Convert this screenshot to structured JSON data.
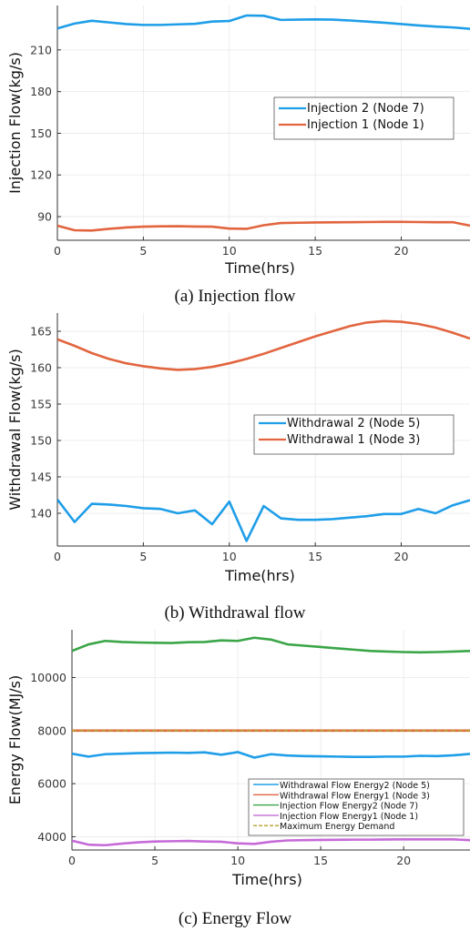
{
  "chart_data": [
    {
      "type": "line",
      "xlabel": "Time(hrs)",
      "ylabel": "Injection Flow(kg/s)",
      "caption": "(a) Injection flow",
      "xlim": [
        0,
        24
      ],
      "ylim": [
        73,
        242
      ],
      "xticks": [
        0,
        5,
        10,
        15,
        20
      ],
      "yticks": [
        90,
        120,
        150,
        180,
        210
      ],
      "grid": true,
      "legend_position": "right",
      "series": [
        {
          "name": "Injection 2 (Node 7)",
          "color": "#1f9ee8",
          "x": [
            0,
            1,
            2,
            3,
            4,
            5,
            6,
            7,
            8,
            9,
            10,
            11,
            12,
            13,
            14,
            15,
            16,
            17,
            18,
            19,
            20,
            21,
            22,
            23,
            24
          ],
          "y": [
            225.5,
            229,
            231,
            229.8,
            228.6,
            228,
            228,
            228.4,
            228.8,
            230.4,
            230.8,
            234.8,
            234.6,
            231.6,
            231.8,
            232,
            231.8,
            231.2,
            230.4,
            229.6,
            228.6,
            227.6,
            226.8,
            226.2,
            225.2
          ]
        },
        {
          "name": "Injection 1 (Node 1)",
          "color": "#e2653f",
          "x": [
            0,
            1,
            2,
            3,
            4,
            5,
            6,
            7,
            8,
            9,
            10,
            11,
            12,
            13,
            14,
            15,
            16,
            17,
            18,
            19,
            20,
            21,
            22,
            23,
            24
          ],
          "y": [
            83.5,
            80.2,
            80,
            81.2,
            82.2,
            82.8,
            83,
            83.1,
            82.9,
            82.8,
            81.4,
            81.2,
            83.8,
            85.4,
            85.6,
            85.8,
            85.9,
            86,
            86.1,
            86.2,
            86.2,
            86.1,
            86,
            86,
            83.5
          ]
        }
      ]
    },
    {
      "type": "line",
      "xlabel": "Time(hrs)",
      "ylabel": "Withdrawal Flow(kg/s)",
      "caption": "(b) Withdrawal flow",
      "xlim": [
        0,
        24
      ],
      "ylim": [
        135.5,
        167.5
      ],
      "xticks": [
        0,
        5,
        10,
        15,
        20
      ],
      "yticks": [
        140,
        145,
        150,
        155,
        160,
        165
      ],
      "grid": true,
      "legend_position": "right",
      "series": [
        {
          "name": "Withdrawal 2 (Node 5)",
          "color": "#1f9ee8",
          "x": [
            0,
            1,
            2,
            3,
            4,
            5,
            6,
            7,
            8,
            9,
            10,
            11,
            12,
            13,
            14,
            15,
            16,
            17,
            18,
            19,
            20,
            21,
            22,
            23,
            24
          ],
          "y": [
            141.9,
            138.8,
            141.3,
            141.2,
            141,
            140.7,
            140.6,
            140,
            140.4,
            138.5,
            141.6,
            136.2,
            141,
            139.3,
            139.1,
            139.1,
            139.2,
            139.4,
            139.6,
            139.9,
            139.9,
            140.6,
            140,
            141.1,
            141.8
          ]
        },
        {
          "name": "Withdrawal 1 (Node 3)",
          "color": "#e2653f",
          "x": [
            0,
            1,
            2,
            3,
            4,
            5,
            6,
            7,
            8,
            9,
            10,
            11,
            12,
            13,
            14,
            15,
            16,
            17,
            18,
            19,
            20,
            21,
            22,
            23,
            24
          ],
          "y": [
            163.9,
            163,
            162,
            161.2,
            160.6,
            160.2,
            159.9,
            159.7,
            159.8,
            160.1,
            160.6,
            161.2,
            161.9,
            162.7,
            163.5,
            164.3,
            165,
            165.7,
            166.2,
            166.4,
            166.3,
            166,
            165.5,
            164.8,
            164
          ]
        }
      ]
    },
    {
      "type": "line",
      "xlabel": "Time(hrs)",
      "ylabel": "Energy Flow(MJ/s)",
      "caption": "(c) Energy Flow",
      "xlim": [
        0,
        24
      ],
      "ylim": [
        3500,
        11800
      ],
      "xticks": [
        0,
        5,
        10,
        15,
        20
      ],
      "yticks": [
        4000,
        6000,
        8000,
        10000
      ],
      "grid": true,
      "legend_position": "bottom-right",
      "series": [
        {
          "name": "Withdrawal Flow Energy2 (Node 5)",
          "color": "#1f9ee8",
          "x": [
            0,
            1,
            2,
            3,
            4,
            5,
            6,
            7,
            8,
            9,
            10,
            11,
            12,
            13,
            14,
            15,
            16,
            17,
            18,
            19,
            20,
            21,
            22,
            23,
            24
          ],
          "y": [
            7130,
            7020,
            7110,
            7130,
            7150,
            7160,
            7170,
            7160,
            7180,
            7090,
            7190,
            6980,
            7110,
            7060,
            7040,
            7030,
            7020,
            7010,
            7010,
            7020,
            7020,
            7050,
            7040,
            7070,
            7120
          ]
        },
        {
          "name": "Withdrawal Flow Energy1 (Node 3)",
          "color": "#e2653f",
          "x": [
            0,
            24
          ],
          "y": [
            8000,
            8000
          ]
        },
        {
          "name": "Injection Flow Energy2 (Node 7)",
          "color": "#3aa648",
          "x": [
            0,
            1,
            2,
            3,
            4,
            5,
            6,
            7,
            8,
            9,
            10,
            11,
            12,
            13,
            14,
            15,
            16,
            17,
            18,
            19,
            20,
            21,
            22,
            23,
            24
          ],
          "y": [
            11000,
            11250,
            11380,
            11340,
            11320,
            11310,
            11300,
            11330,
            11340,
            11400,
            11380,
            11500,
            11430,
            11250,
            11200,
            11150,
            11100,
            11050,
            11000,
            10980,
            10960,
            10950,
            10960,
            10980,
            11000
          ]
        },
        {
          "name": "Injection Flow Energy1 (Node 1)",
          "color": "#c66bd8",
          "x": [
            0,
            1,
            2,
            3,
            4,
            5,
            6,
            7,
            8,
            9,
            10,
            11,
            12,
            13,
            14,
            15,
            16,
            17,
            18,
            19,
            20,
            21,
            22,
            23,
            24
          ],
          "y": [
            3850,
            3700,
            3680,
            3740,
            3790,
            3820,
            3830,
            3840,
            3820,
            3810,
            3750,
            3730,
            3810,
            3860,
            3870,
            3880,
            3885,
            3890,
            3890,
            3895,
            3900,
            3900,
            3900,
            3900,
            3870
          ]
        },
        {
          "name": "Maximum Energy Demand",
          "color": "#b8a02a",
          "dash": true,
          "x": [
            0,
            24
          ],
          "y": [
            8000,
            8000
          ]
        }
      ]
    }
  ]
}
